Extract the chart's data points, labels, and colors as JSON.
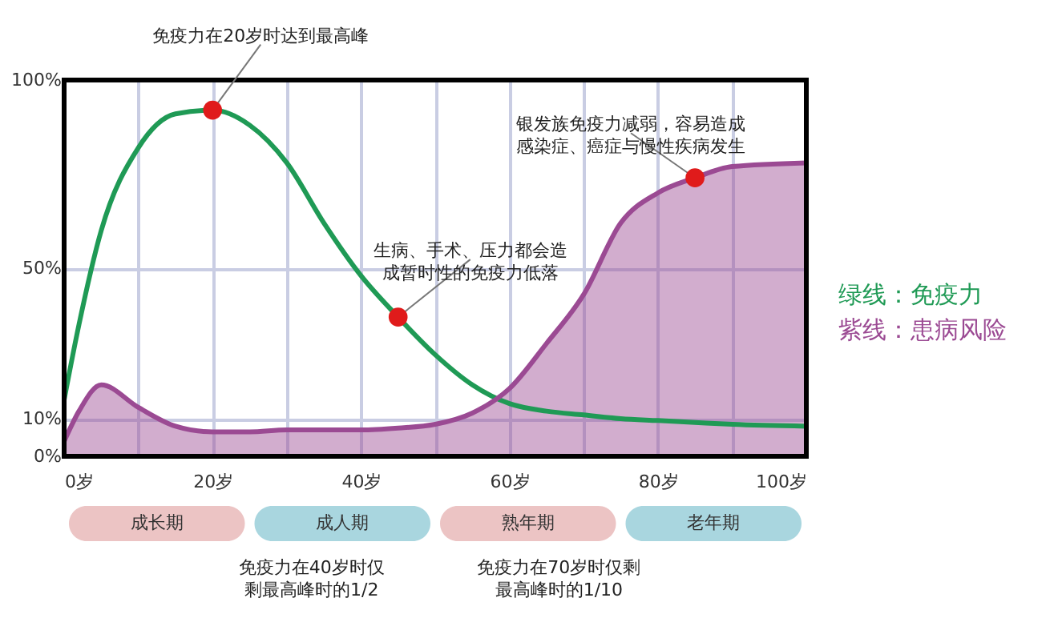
{
  "chart_data": {
    "type": "line",
    "x": [
      0,
      2,
      5,
      10,
      15,
      20,
      25,
      30,
      35,
      40,
      45,
      50,
      55,
      60,
      65,
      70,
      75,
      80,
      85,
      90,
      100
    ],
    "series": [
      {
        "name": "绿线：免疫力",
        "color": "#1f9a55",
        "values": [
          15,
          35,
          60,
          82,
          91,
          92,
          88,
          78,
          62,
          48,
          37,
          27,
          19,
          14,
          12,
          11,
          10,
          9.5,
          9,
          8.5,
          8
        ]
      },
      {
        "name": "紫线：患病风险",
        "color": "#9b4a93",
        "type": "area",
        "values": [
          4,
          12,
          19,
          13,
          8,
          6.5,
          6.5,
          7,
          7,
          7,
          7.5,
          8.5,
          11.5,
          18,
          30,
          43,
          62,
          70,
          74,
          77,
          78
        ]
      }
    ],
    "xlim": [
      0,
      100
    ],
    "xticks": [
      {
        "value": 0,
        "label": "0岁"
      },
      {
        "value": 10,
        "label": null
      },
      {
        "value": 20,
        "label": "20岁"
      },
      {
        "value": 30,
        "label": null
      },
      {
        "value": 40,
        "label": "40岁"
      },
      {
        "value": 50,
        "label": null
      },
      {
        "value": 60,
        "label": "60岁"
      },
      {
        "value": 70,
        "label": null
      },
      {
        "value": 80,
        "label": "80岁"
      },
      {
        "value": 90,
        "label": null
      },
      {
        "value": 100,
        "label": "100岁"
      }
    ],
    "ylim": [
      0,
      100
    ],
    "yticks": [
      {
        "value": 0,
        "label": "0%"
      },
      {
        "value": 10,
        "label": "10%"
      },
      {
        "value": 50,
        "label": "50%"
      },
      {
        "value": 100,
        "label": "100%"
      }
    ],
    "grid": true,
    "legend": "right",
    "annotations": [
      {
        "text": "免疫力在20岁时达到最高峰",
        "x": 20,
        "y": 92
      },
      {
        "text": "生病、手术、压力都会造成暂时性的免疫力低落",
        "x": 45,
        "y": 37
      },
      {
        "text": "银发族免疫力减弱，容易造成感染症、癌症与慢性疾病发生",
        "x": 85,
        "y": 74
      },
      "成长期",
      "成人期",
      "熟年期",
      "老年期",
      "免疫力在40岁时仅剩最高峰时的1/2",
      "免疫力在70岁时仅剩最高峰时的1/10"
    ]
  }
}
